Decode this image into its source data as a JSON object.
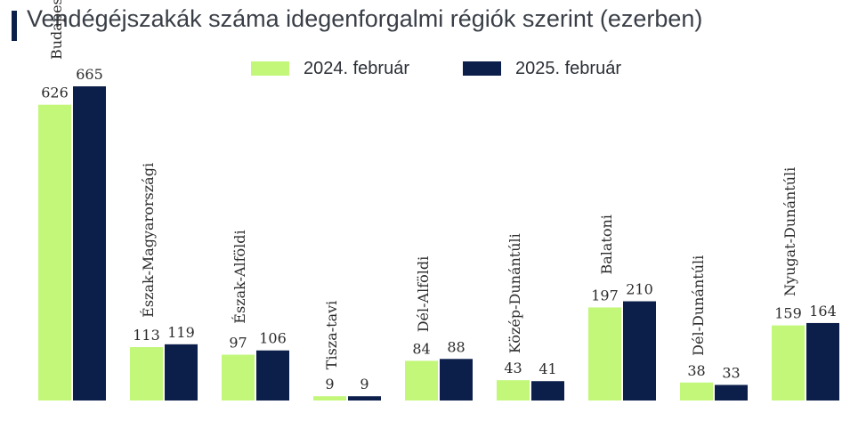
{
  "chart_data": {
    "type": "bar",
    "title": "Vendégéjszakák száma idegenforgalmi régiók szerint (ezerben)",
    "categories": [
      "Budapest-Közép-Dunavidéki",
      "Észak-Magyarországi",
      "Észak-Alföldi",
      "Tisza-tavi",
      "Dél-Alföldi",
      "Közép-Dunántúli",
      "Balatoni",
      "Dél-Dunántúli",
      "Nyugat-Dunántúli"
    ],
    "series": [
      {
        "name": "2024. február",
        "values": [
          626,
          113,
          97,
          9,
          84,
          43,
          197,
          38,
          159
        ],
        "color": "#c2f77a"
      },
      {
        "name": "2025. február",
        "values": [
          665,
          119,
          106,
          9,
          88,
          41,
          210,
          33,
          164
        ],
        "color": "#0c1f4a"
      }
    ],
    "ylim": [
      0,
      665
    ],
    "grid": false,
    "legend": "top-center",
    "accent_color": "#0c1f4a"
  }
}
